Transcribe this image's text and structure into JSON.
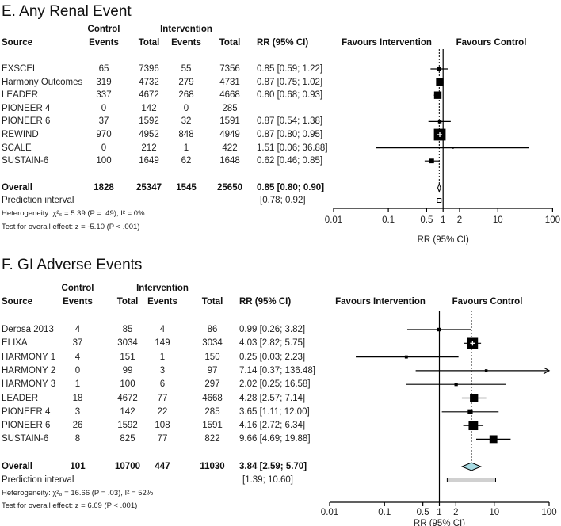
{
  "chart_data": [
    {
      "type": "forest",
      "title": "E. Any Renal Event",
      "headers": {
        "source": "Source",
        "control": "Control",
        "intervention": "Intervention",
        "events": "Events",
        "total": "Total",
        "rr": "RR (95% CI)",
        "favours_left": "Favours Intervention",
        "favours_right": "Favours Control"
      },
      "rows": [
        {
          "source": "EXSCEL",
          "control_events": "65",
          "control_total": "7396",
          "int_events": "55",
          "int_total": "7356",
          "rr_text": "0.85 [0.59;  1.22]",
          "rr": 0.85,
          "lo": 0.59,
          "hi": 1.22
        },
        {
          "source": "Harmony Outcomes",
          "control_events": "319",
          "control_total": "4732",
          "int_events": "279",
          "int_total": "4731",
          "rr_text": "0.87 [0.75;  1.02]",
          "rr": 0.87,
          "lo": 0.75,
          "hi": 1.02
        },
        {
          "source": "LEADER",
          "control_events": "337",
          "control_total": "4672",
          "int_events": "268",
          "int_total": "4668",
          "rr_text": "0.80 [0.68;  0.93]",
          "rr": 0.8,
          "lo": 0.68,
          "hi": 0.93
        },
        {
          "source": "PIONEER 4",
          "control_events": "0",
          "control_total": "142",
          "int_events": "0",
          "int_total": "285",
          "rr_text": null,
          "rr": null,
          "lo": null,
          "hi": null
        },
        {
          "source": "PIONEER 6",
          "control_events": "37",
          "control_total": "1592",
          "int_events": "32",
          "int_total": "1591",
          "rr_text": "0.87 [0.54;  1.38]",
          "rr": 0.87,
          "lo": 0.54,
          "hi": 1.38
        },
        {
          "source": "REWIND",
          "control_events": "970",
          "control_total": "4952",
          "int_events": "848",
          "int_total": "4949",
          "rr_text": "0.87 [0.80;  0.95]",
          "rr": 0.87,
          "lo": 0.8,
          "hi": 0.95
        },
        {
          "source": "SCALE",
          "control_events": "0",
          "control_total": "212",
          "int_events": "1",
          "int_total": "422",
          "rr_text": "1.51 [0.06; 36.88]",
          "rr": 1.51,
          "lo": 0.06,
          "hi": 36.88
        },
        {
          "source": "SUSTAIN-6",
          "control_events": "100",
          "control_total": "1649",
          "int_events": "62",
          "int_total": "1648",
          "rr_text": "0.62 [0.46;  0.85]",
          "rr": 0.62,
          "lo": 0.46,
          "hi": 0.85
        }
      ],
      "overall": {
        "label": "Overall",
        "control_events": "1828",
        "control_total": "25347",
        "int_events": "1545",
        "int_total": "25650",
        "rr_text": "0.85 [0.80;  0.90]",
        "rr": 0.85,
        "lo": 0.8,
        "hi": 0.9
      },
      "prediction": {
        "label": "Prediction interval",
        "text": "[0.78;  0.92]",
        "lo": 0.78,
        "hi": 0.92
      },
      "heterogeneity": "Heterogeneity: χ²₆ = 5.39 (P = .49), I² = 0%",
      "overall_test": "Test for overall effect: z = -5.10 (P < .001)",
      "xlabel": "RR (95% CI)",
      "xscale": "log",
      "xlim": [
        0.01,
        100
      ],
      "xticks": [
        "0.01",
        "0.1",
        "0.5",
        "1",
        "2",
        "10",
        "100"
      ]
    },
    {
      "type": "forest",
      "title": "F. GI Adverse Events",
      "headers": {
        "source": "Source",
        "control": "Control",
        "intervention": "Intervention",
        "events": "Events",
        "total": "Total",
        "rr": "RR (95% CI)",
        "favours_left": "Favours Intervention",
        "favours_right": "Favours Control"
      },
      "rows": [
        {
          "source": "Derosa 2013",
          "control_events": "4",
          "control_total": "85",
          "int_events": "4",
          "int_total": "86",
          "rr_text": "0.99 [0.26;   3.82]",
          "rr": 0.99,
          "lo": 0.26,
          "hi": 3.82
        },
        {
          "source": "ELIXA",
          "control_events": "37",
          "control_total": "3034",
          "int_events": "149",
          "int_total": "3034",
          "rr_text": "4.03 [2.82;   5.75]",
          "rr": 4.03,
          "lo": 2.82,
          "hi": 5.75
        },
        {
          "source": "HARMONY 1",
          "control_events": "4",
          "control_total": "151",
          "int_events": "1",
          "int_total": "150",
          "rr_text": "0.25 [0.03;   2.23]",
          "rr": 0.25,
          "lo": 0.03,
          "hi": 2.23
        },
        {
          "source": "HARMONY 2",
          "control_events": "0",
          "control_total": "99",
          "int_events": "3",
          "int_total": "97",
          "rr_text": "7.14 [0.37; 136.48]",
          "rr": 7.14,
          "lo": 0.37,
          "hi": 136.48
        },
        {
          "source": "HARMONY 3",
          "control_events": "1",
          "control_total": "100",
          "int_events": "6",
          "int_total": "297",
          "rr_text": "2.02 [0.25;  16.58]",
          "rr": 2.02,
          "lo": 0.25,
          "hi": 16.58
        },
        {
          "source": "LEADER",
          "control_events": "18",
          "control_total": "4672",
          "int_events": "77",
          "int_total": "4668",
          "rr_text": "4.28 [2.57;   7.14]",
          "rr": 4.28,
          "lo": 2.57,
          "hi": 7.14
        },
        {
          "source": "PIONEER 4",
          "control_events": "3",
          "control_total": "142",
          "int_events": "22",
          "int_total": "285",
          "rr_text": "3.65 [1.11;  12.00]",
          "rr": 3.65,
          "lo": 1.11,
          "hi": 12.0
        },
        {
          "source": "PIONEER 6",
          "control_events": "26",
          "control_total": "1592",
          "int_events": "108",
          "int_total": "1591",
          "rr_text": "4.16 [2.72;   6.34]",
          "rr": 4.16,
          "lo": 2.72,
          "hi": 6.34
        },
        {
          "source": "SUSTAIN-6",
          "control_events": "8",
          "control_total": "825",
          "int_events": "77",
          "int_total": "822",
          "rr_text": "9.66 [4.69;  19.88]",
          "rr": 9.66,
          "lo": 4.69,
          "hi": 19.88
        }
      ],
      "overall": {
        "label": "Overall",
        "control_events": "101",
        "control_total": "10700",
        "int_events": "447",
        "int_total": "11030",
        "rr_text": "3.84 [2.59;   5.70]",
        "rr": 3.84,
        "lo": 2.59,
        "hi": 5.7
      },
      "prediction": {
        "label": "Prediction interval",
        "text": "[1.39;  10.60]",
        "lo": 1.39,
        "hi": 10.6
      },
      "heterogeneity": "Heterogeneity: χ²₈ = 16.66 (P = .03), I² = 52%",
      "overall_test": "Test for overall effect: z = 6.69 (P < .001)",
      "xlabel": "RR (95% CI)",
      "xscale": "log",
      "xlim": [
        0.01,
        100
      ],
      "xticks": [
        "0.01",
        "0.1",
        "0.5",
        "1",
        "2",
        "10",
        "100"
      ]
    }
  ],
  "colors": {
    "marker": "#000000",
    "diamond_e": "#ffffff",
    "diamond_f": "#a8dbe3",
    "prediction_f": "#d0d0d0"
  }
}
